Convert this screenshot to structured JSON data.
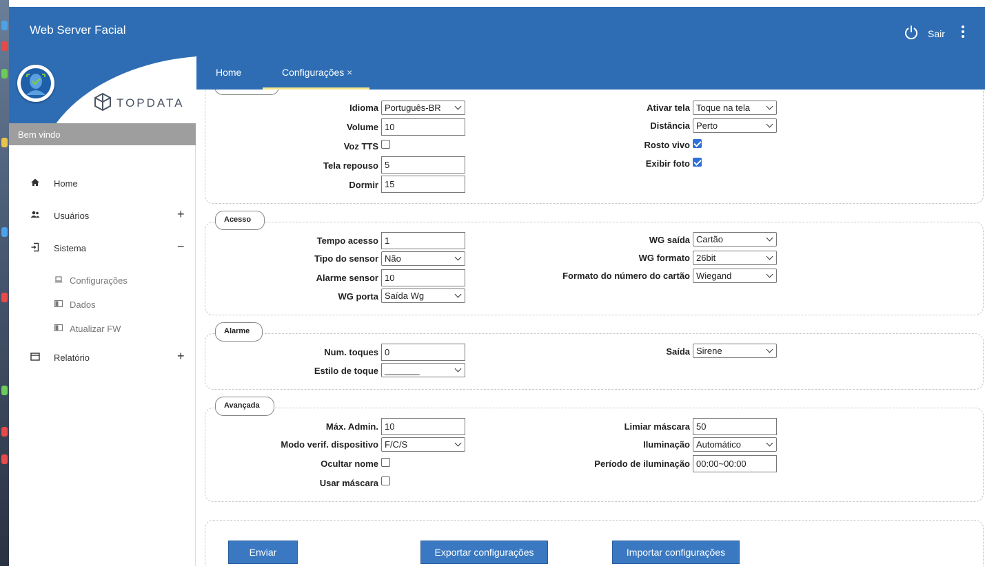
{
  "app": {
    "title": "Web Server Facial",
    "logout_label": "Sair"
  },
  "brand": {
    "logo_text": "TOPDATA",
    "welcome": "Bem vindo"
  },
  "menu": {
    "home": "Home",
    "users": "Usuários",
    "system": "Sistema",
    "system_sub": [
      "Configurações",
      "Dados",
      "Atualizar FW"
    ],
    "report": "Relatório",
    "plus": "+",
    "minus": "−"
  },
  "tabs": {
    "home": "Home",
    "config": "Configurações",
    "close": "×"
  },
  "display": {
    "idioma_label": "Idioma",
    "idioma_value": "Português-BR",
    "volume_label": "Volume",
    "volume_value": "10",
    "voz_label": "Voz TTS",
    "voz_checked": false,
    "tela_label": "Tela repouso",
    "tela_value": "5",
    "dormir_label": "Dormir",
    "dormir_value": "15",
    "ativar_label": "Ativar tela",
    "ativar_value": "Toque na tela",
    "distancia_label": "Distância",
    "distancia_value": "Perto",
    "rosto_label": "Rosto vivo",
    "rosto_checked": true,
    "foto_label": "Exibir foto",
    "foto_checked": true
  },
  "acesso": {
    "legend": "Acesso",
    "tempo_label": "Tempo acesso",
    "tempo_value": "1",
    "sensor_label": "Tipo do sensor",
    "sensor_value": "Não",
    "alarme_label": "Alarme sensor",
    "alarme_value": "10",
    "porta_label": "WG porta",
    "porta_value": "Saída Wg",
    "saida_label": "WG saída",
    "saida_value": "Cartão",
    "formato_label": "WG formato",
    "formato_value": "26bit",
    "numero_label": "Formato do número do cartão",
    "numero_value": "Wiegand"
  },
  "alarme": {
    "legend": "Alarme",
    "toques_label": "Num. toques",
    "toques_value": "0",
    "estilo_label": "Estilo de toque",
    "estilo_value": "_______",
    "saida_label": "Saída",
    "saida_value": "Sirene"
  },
  "avancada": {
    "legend": "Avançada",
    "admin_label": "Máx. Admin.",
    "admin_value": "10",
    "modo_label": "Modo verif. dispositivo",
    "modo_value": "F/C/S",
    "ocultar_label": "Ocultar nome",
    "ocultar_checked": false,
    "mascara_label": "Usar máscara",
    "mascara_checked": false,
    "limiar_label": "Limiar máscara",
    "limiar_value": "50",
    "ilum_label": "Iluminação",
    "ilum_value": "Automático",
    "periodo_label": "Período de iluminação",
    "periodo_value": "00:00~00:00"
  },
  "buttons": {
    "enviar": "Enviar",
    "exportar": "Exportar configurações",
    "importar": "Importar configurações"
  },
  "colors": {
    "header": "#2e6db4",
    "button": "#3a79c2",
    "tab_indicator": "#f3e58a",
    "checkbox": "#2f6fd8"
  },
  "icons": [
    "power-icon",
    "kebab-menu-icon",
    "home-icon",
    "users-icon",
    "system-icon",
    "laptop-icon",
    "data-icon",
    "report-icon",
    "face-avatar-icon",
    "topdata-logo-icon"
  ]
}
